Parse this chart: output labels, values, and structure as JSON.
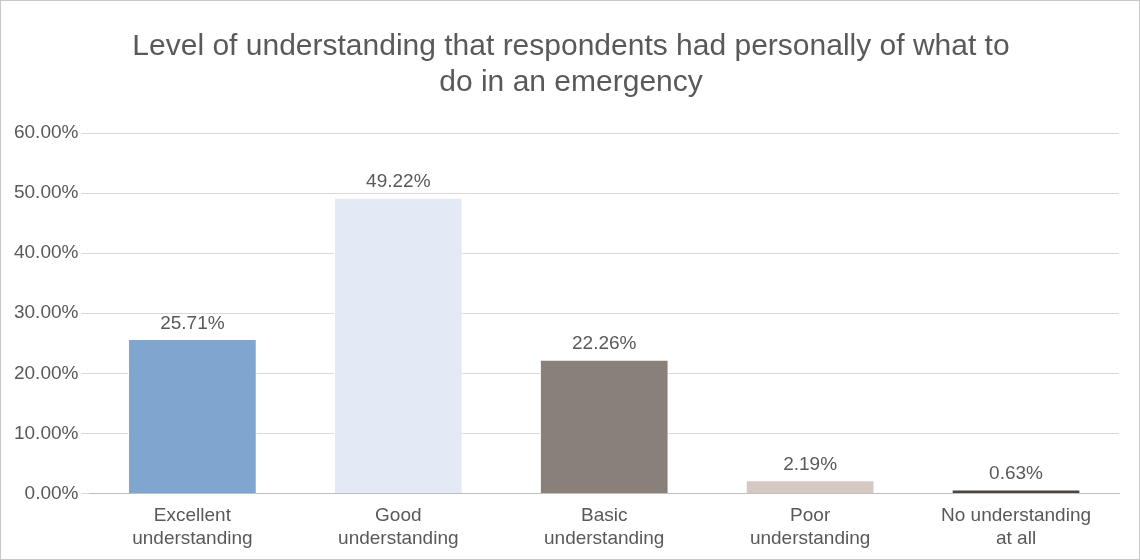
{
  "chart_data": {
    "type": "bar",
    "title": "Level of understanding that respondents had personally  of what to do in an emergency",
    "categories": [
      "Excellent understanding",
      "Good understanding",
      "Basic understanding",
      "Poor understanding",
      "No understanding at all"
    ],
    "values": [
      25.71,
      49.22,
      22.26,
      2.19,
      0.63
    ],
    "colors": [
      "#7fa6cf",
      "#e3eaf5",
      "#898079",
      "#d4c9c3",
      "#4b4642"
    ],
    "value_labels": [
      "25.71%",
      "49.22%",
      "22.26%",
      "2.19%",
      "0.63%"
    ],
    "ylim": [
      0,
      60
    ],
    "yticks": [
      {
        "value": 0,
        "label": "0.00%"
      },
      {
        "value": 10,
        "label": "10.00%"
      },
      {
        "value": 20,
        "label": "20.00%"
      },
      {
        "value": 30,
        "label": "30.00%"
      },
      {
        "value": 40,
        "label": "40.00%"
      },
      {
        "value": 50,
        "label": "50.00%"
      },
      {
        "value": 60,
        "label": "60.00%"
      }
    ],
    "grid": "y",
    "legend": false
  }
}
